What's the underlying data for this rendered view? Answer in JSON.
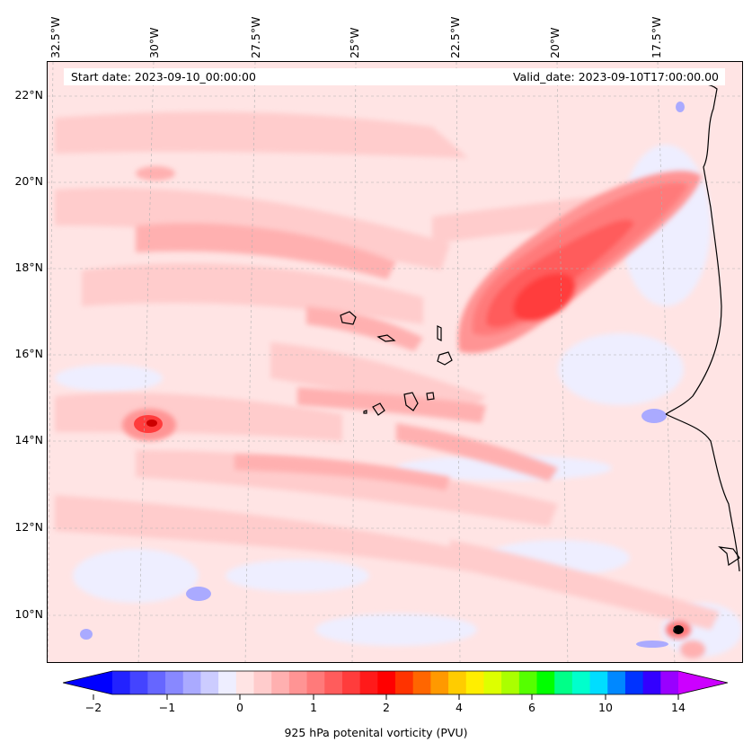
{
  "map": {
    "start_date": "Start date: 2023-09-10_00:00:00",
    "valid_date": "Valid_date: 2023-09-10T17:00:00.00",
    "lon_labels": [
      "32.5°W",
      "30°W",
      "27.5°W",
      "25°W",
      "22.5°W",
      "20°W",
      "17.5°W"
    ],
    "lat_labels": [
      "22°N",
      "20°N",
      "18°N",
      "16°N",
      "14°N",
      "12°N",
      "10°N"
    ],
    "gridlines": true,
    "colors": {
      "land_outline": "#000000",
      "background": "#ffe6e6"
    }
  },
  "colorbar": {
    "label": "925 hPa potenital vorticity (PVU)",
    "tick_labels": [
      "−2",
      "−1",
      "0",
      "1",
      "2",
      "4",
      "6",
      "10",
      "14"
    ],
    "colors": [
      "#0000ff",
      "#2222ff",
      "#4444ff",
      "#6666ff",
      "#8888ff",
      "#aaaaff",
      "#ccccff",
      "#eeeeff",
      "#ffe4e4",
      "#ffcccc",
      "#ffb0b0",
      "#ff9494",
      "#ff7a7a",
      "#ff5c5c",
      "#ff3c3c",
      "#ff1a1a",
      "#ff0000",
      "#ff3300",
      "#ff6600",
      "#ff9900",
      "#ffcc00",
      "#ffee00",
      "#ddff00",
      "#aaff00",
      "#55ff00",
      "#00ff00",
      "#00ff88",
      "#00ffcc",
      "#00ddff",
      "#0088ff",
      "#0033ff",
      "#3300ff",
      "#9900ff",
      "#cc00ff"
    ]
  }
}
